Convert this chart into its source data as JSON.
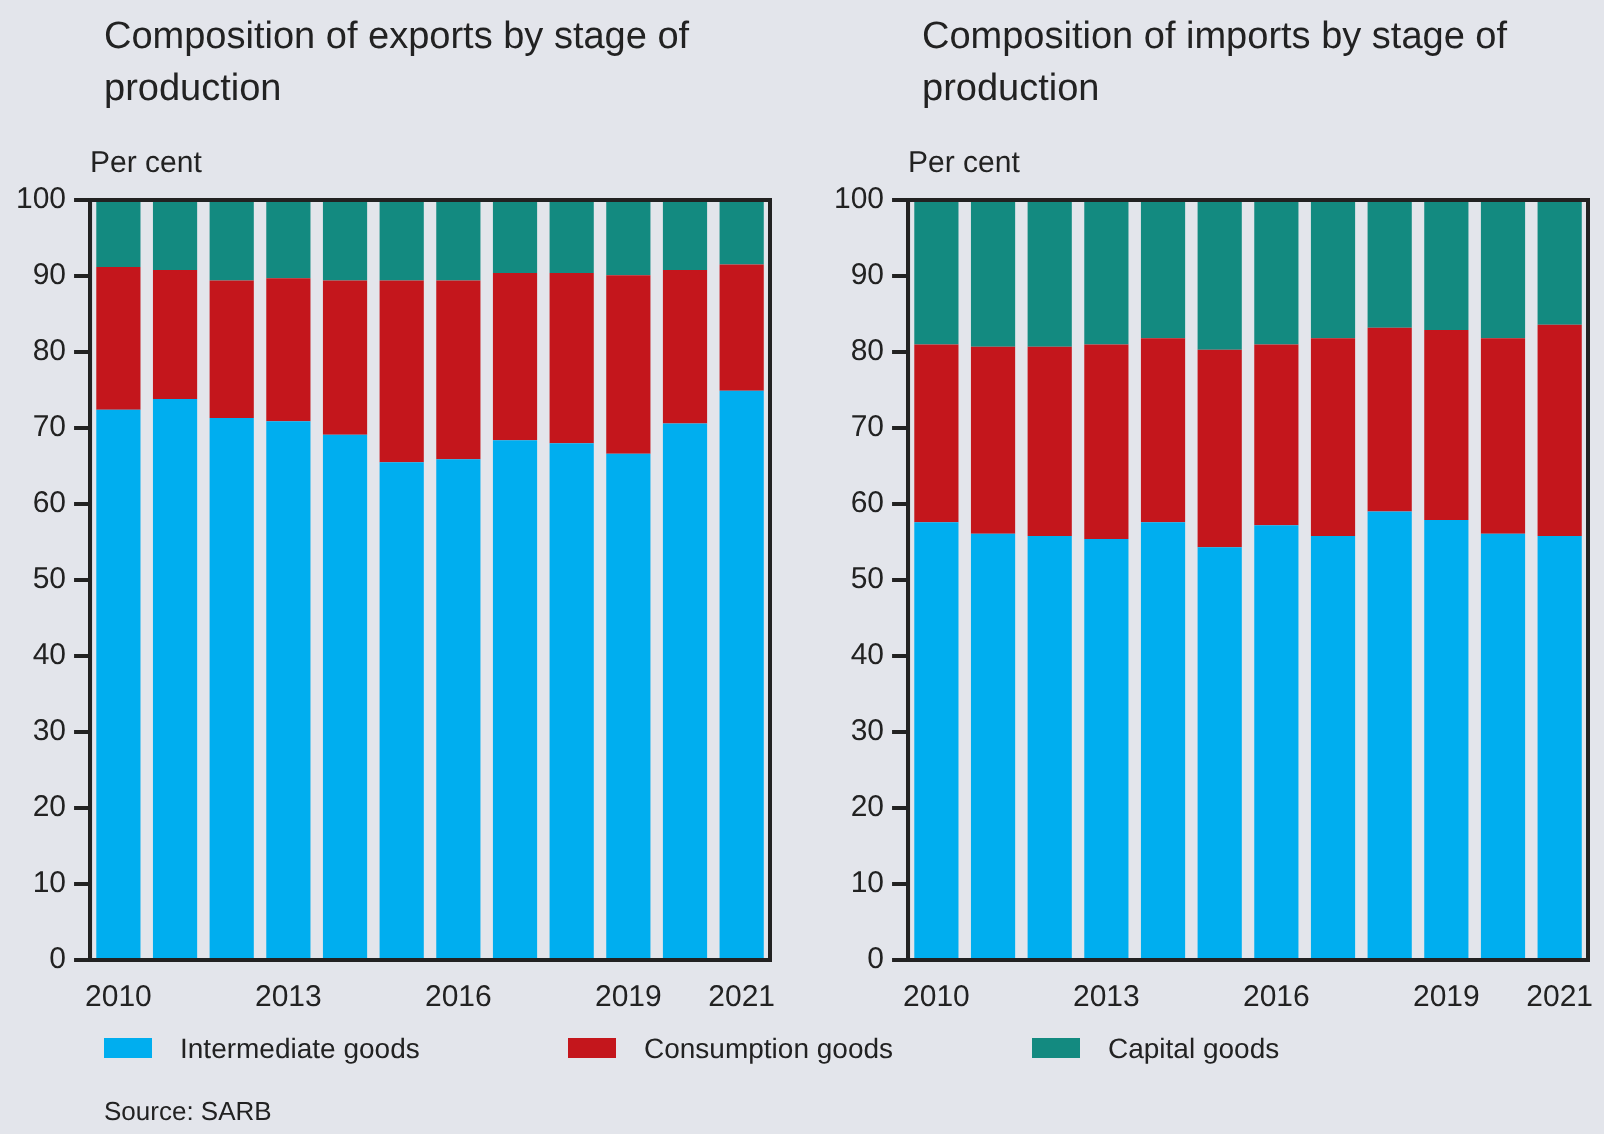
{
  "chart_data": [
    {
      "type": "bar",
      "title": "Composition of exports by stage of production",
      "ylabel": "Per cent",
      "stacked": true,
      "legend": "bottom",
      "annotations": [
        "Source: SARB"
      ],
      "categories": [
        "2010",
        null,
        null,
        "2013",
        null,
        null,
        "2016",
        null,
        null,
        "2019",
        null,
        "2021"
      ],
      "ylim": [
        0,
        100
      ],
      "yticks": [
        0,
        10,
        20,
        30,
        40,
        50,
        60,
        70,
        80,
        90,
        100
      ],
      "series": [
        {
          "name": "Intermediate goods",
          "color": "#00aeef",
          "values": [
            72.4,
            73.8,
            71.3,
            70.9,
            69.1,
            65.5,
            65.9,
            68.4,
            68.0,
            66.6,
            70.6,
            74.9
          ]
        },
        {
          "name": "Consumption goods",
          "color": "#c4161c",
          "values": [
            18.8,
            17.0,
            18.1,
            18.8,
            20.3,
            23.9,
            23.5,
            22.0,
            22.4,
            23.5,
            20.2,
            16.6
          ]
        },
        {
          "name": "Capital goods",
          "color": "#138a80",
          "values": [
            8.8,
            9.2,
            10.6,
            10.3,
            10.6,
            10.6,
            10.6,
            9.6,
            9.6,
            9.9,
            9.2,
            8.5
          ]
        }
      ]
    },
    {
      "type": "bar",
      "title": "Composition of imports by stage of production",
      "ylabel": "Per cent",
      "stacked": true,
      "categories": [
        "2010",
        null,
        null,
        "2013",
        null,
        null,
        "2016",
        null,
        null,
        "2019",
        null,
        "2021"
      ],
      "ylim": [
        0,
        100
      ],
      "yticks": [
        0,
        10,
        20,
        30,
        40,
        50,
        60,
        70,
        80,
        90,
        100
      ],
      "series": [
        {
          "color": "#00aeef",
          "values": [
            57.6,
            56.1,
            55.8,
            55.4,
            57.6,
            54.3,
            57.2,
            55.8,
            59.0,
            57.9,
            56.1,
            55.8
          ]
        },
        {
          "color": "#c4161c",
          "values": [
            23.4,
            24.6,
            24.9,
            25.6,
            24.2,
            26.0,
            23.8,
            26.0,
            24.2,
            25.0,
            25.7,
            27.8
          ]
        },
        {
          "color": "#138a80",
          "values": [
            19.0,
            19.3,
            19.3,
            19.0,
            18.2,
            19.7,
            19.0,
            18.2,
            16.8,
            17.1,
            18.2,
            16.4
          ]
        }
      ]
    }
  ]
}
